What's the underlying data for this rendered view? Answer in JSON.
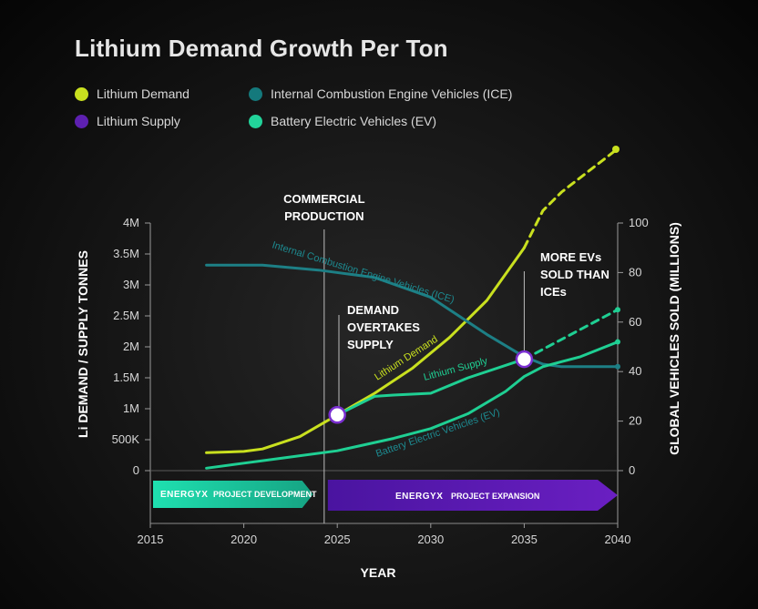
{
  "chart_data": {
    "type": "line",
    "title": "Lithium Demand Growth Per Ton",
    "xlabel": "YEAR",
    "ylabel_left": "Li DEMAND / SUPPLY TONNES",
    "ylabel_right": "GLOBAL VEHICLES SOLD (MILLIONS)",
    "x_ticks": [
      "2015",
      "2020",
      "2025",
      "2030",
      "2035",
      "2040"
    ],
    "x_range": [
      2015,
      2040
    ],
    "y_left_ticks": [
      "0",
      "500K",
      "1M",
      "1.5M",
      "2M",
      "2.5M",
      "3M",
      "3.5M",
      "4M"
    ],
    "y_left_range": [
      0,
      4000000
    ],
    "y_right_ticks": [
      "0",
      "20",
      "40",
      "60",
      "80",
      "100"
    ],
    "y_right_range": [
      0,
      100
    ],
    "legend_position": "top-left",
    "series": [
      {
        "name": "Lithium Demand",
        "axis": "left",
        "color": "#c9e01f",
        "points": [
          [
            2018,
            290000
          ],
          [
            2020,
            310000
          ],
          [
            2021,
            350000
          ],
          [
            2023,
            550000
          ],
          [
            2025,
            900000
          ],
          [
            2027,
            1250000
          ],
          [
            2029,
            1650000
          ],
          [
            2031,
            2150000
          ],
          [
            2033,
            2750000
          ],
          [
            2035,
            3600000
          ]
        ],
        "projected_points": [
          [
            2035,
            3600000
          ],
          [
            2036,
            4200000
          ],
          [
            2037,
            4500000
          ],
          [
            2040,
            5200000
          ]
        ]
      },
      {
        "name": "Lithium Supply",
        "axis": "left",
        "color": "#ffffff",
        "points": [
          [
            2025,
            900000
          ],
          [
            2027,
            1200000
          ],
          [
            2028,
            1220000
          ],
          [
            2030,
            1250000
          ],
          [
            2032,
            1500000
          ],
          [
            2035,
            1800000
          ]
        ],
        "projected_points": [
          [
            2035,
            1800000
          ],
          [
            2040,
            2600000
          ]
        ]
      },
      {
        "name": "Internal Combustion Engine Vehicles (ICE)",
        "axis": "right",
        "color": "#1d7f85",
        "points": [
          [
            2018,
            83
          ],
          [
            2021,
            83
          ],
          [
            2024,
            81
          ],
          [
            2027,
            78
          ],
          [
            2030,
            70
          ],
          [
            2033,
            55
          ],
          [
            2035,
            46
          ],
          [
            2036,
            43
          ],
          [
            2037,
            42
          ],
          [
            2038,
            42
          ],
          [
            2040,
            42
          ]
        ]
      },
      {
        "name": "Battery Electric Vehicles (EV)",
        "axis": "right",
        "color": "#1fcf93",
        "points": [
          [
            2018,
            1
          ],
          [
            2020,
            3
          ],
          [
            2022,
            5
          ],
          [
            2025,
            8
          ],
          [
            2028,
            13
          ],
          [
            2030,
            17
          ],
          [
            2032,
            23
          ],
          [
            2034,
            32
          ],
          [
            2035,
            38
          ],
          [
            2036,
            42
          ],
          [
            2037,
            44
          ],
          [
            2038,
            46
          ],
          [
            2040,
            52
          ]
        ]
      }
    ],
    "curve_labels": {
      "ice": "Internal Combustion Engine Vehicles (ICE)",
      "demand": "Lithium Demand",
      "supply": "Lithium Supply",
      "ev": "Battery Electric Vehicles (EV)"
    },
    "annotations": [
      {
        "lines": [
          "COMMERCIAL",
          "PRODUCTION"
        ],
        "x": 2024.3
      },
      {
        "lines": [
          "DEMAND",
          "OVERTAKES",
          "SUPPLY"
        ],
        "x": 2025
      },
      {
        "lines": [
          "MORE EVs",
          "SOLD THAN",
          "ICEs"
        ],
        "x": 2035
      }
    ],
    "markers": [
      {
        "x": 2025,
        "y": 900000,
        "axis": "left"
      },
      {
        "x": 2035,
        "y": 1800000,
        "axis": "left"
      }
    ],
    "phases": [
      {
        "brand": "ENERGYX",
        "label": "PROJECT DEVELOPMENT",
        "start": 2015,
        "end": 2024,
        "color": "#1fd2a3"
      },
      {
        "brand": "ENERGYX",
        "label": "PROJECT EXPANSION",
        "start": 2024.3,
        "end": 2040,
        "color": "#5b1aa8"
      }
    ]
  },
  "legend": [
    {
      "label": "Lithium Demand",
      "color": "#c9e01f"
    },
    {
      "label": "Internal Combustion Engine Vehicles (ICE)",
      "color": "#14797c"
    },
    {
      "label": "Lithium Supply",
      "color": "#5d20b0"
    },
    {
      "label": "Battery Electric Vehicles (EV)",
      "color": "#22d39a"
    }
  ]
}
